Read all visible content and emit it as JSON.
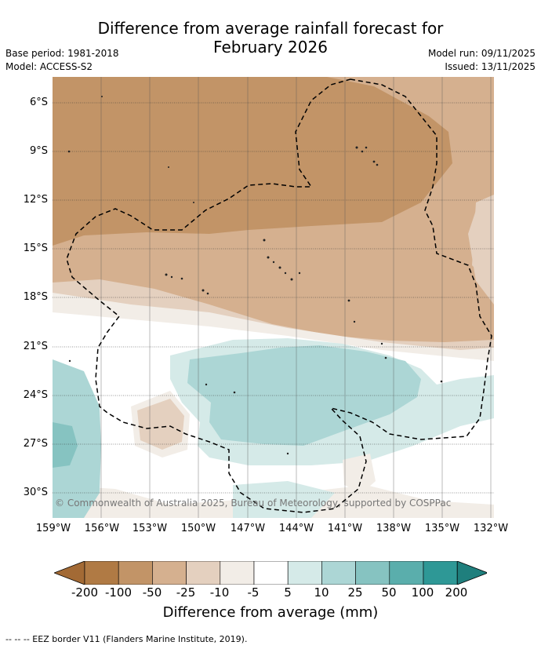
{
  "title_line1": "Difference from average rainfall forecast for",
  "title_line2": "February 2026",
  "base_period": "Base period: 1981-2018",
  "model": "Model: ACCESS-S2",
  "model_run": "Model run: 09/11/2025",
  "issued": "Issued: 13/11/2025",
  "copyright": "© Commonwealth of Australia 2025, Bureau of Meteorology, supported by COSPPac",
  "lat_labels": [
    "6°S",
    "9°S",
    "12°S",
    "15°S",
    "18°S",
    "21°S",
    "24°S",
    "27°S",
    "30°S"
  ],
  "lon_labels": [
    "159°W",
    "156°W",
    "153°W",
    "150°W",
    "147°W",
    "144°W",
    "141°W",
    "138°W",
    "135°W",
    "132°W"
  ],
  "colorbar": {
    "ticks": [
      "-200",
      "-100",
      "-50",
      "-25",
      "-10",
      "-5",
      "5",
      "10",
      "25",
      "50",
      "100",
      "200"
    ],
    "colors": [
      "#a36a35",
      "#b07a44",
      "#c29467",
      "#d5b08f",
      "#e4d0bf",
      "#f2ede7",
      "#ffffff",
      "#d5eae8",
      "#acd6d5",
      "#86c3c1",
      "#5aaeac",
      "#2e9896",
      "#1f7f7d"
    ],
    "title": "Difference from average (mm)"
  },
  "footer": "--  --  -- EEZ border V11 (Flanders Marine Institute, 2019)."
}
